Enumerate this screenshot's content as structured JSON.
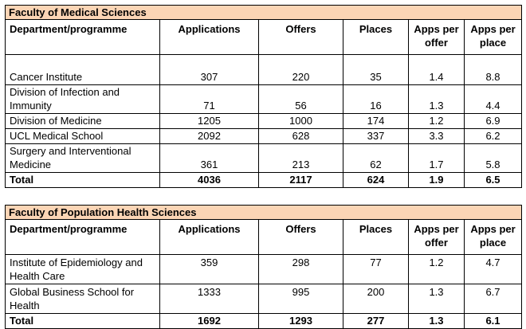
{
  "columns": {
    "department": "Department/programme",
    "applications": "Applications",
    "offers": "Offers",
    "places": "Places",
    "apps_per_offer": "Apps per offer",
    "apps_per_place": "Apps per place"
  },
  "tables": [
    {
      "faculty": "Faculty of Medical Sciences",
      "rows": [
        {
          "department": "Cancer Institute",
          "applications": "307",
          "offers": "220",
          "places": "35",
          "apps_per_offer": "1.4",
          "apps_per_place": "8.8"
        },
        {
          "department": "Division of Infection and Immunity",
          "applications": "71",
          "offers": "56",
          "places": "16",
          "apps_per_offer": "1.3",
          "apps_per_place": "4.4"
        },
        {
          "department": "Division of Medicine",
          "applications": "1205",
          "offers": "1000",
          "places": "174",
          "apps_per_offer": "1.2",
          "apps_per_place": "6.9"
        },
        {
          "department": "UCL Medical School",
          "applications": "2092",
          "offers": "628",
          "places": "337",
          "apps_per_offer": "3.3",
          "apps_per_place": "6.2"
        },
        {
          "department": "Surgery and Interventional Medicine",
          "applications": "361",
          "offers": "213",
          "places": "62",
          "apps_per_offer": "1.7",
          "apps_per_place": "5.8"
        }
      ],
      "total": {
        "department": "Total",
        "applications": "4036",
        "offers": "2117",
        "places": "624",
        "apps_per_offer": "1.9",
        "apps_per_place": "6.5"
      }
    },
    {
      "faculty": "Faculty of Population Health Sciences",
      "rows": [
        {
          "department": "Institute of Epidemiology and Health Care",
          "applications": "359",
          "offers": "298",
          "places": "77",
          "apps_per_offer": "1.2",
          "apps_per_place": "4.7"
        },
        {
          "department": "Global Business School for Health",
          "applications": "1333",
          "offers": "995",
          "places": "200",
          "apps_per_offer": "1.3",
          "apps_per_place": "6.7"
        }
      ],
      "total": {
        "department": "Total",
        "applications": "1692",
        "offers": "1293",
        "places": "277",
        "apps_per_offer": "1.3",
        "apps_per_place": "6.1"
      }
    }
  ],
  "colors": {
    "faculty_header_bg": "#fbd5b5",
    "border": "#000000"
  }
}
